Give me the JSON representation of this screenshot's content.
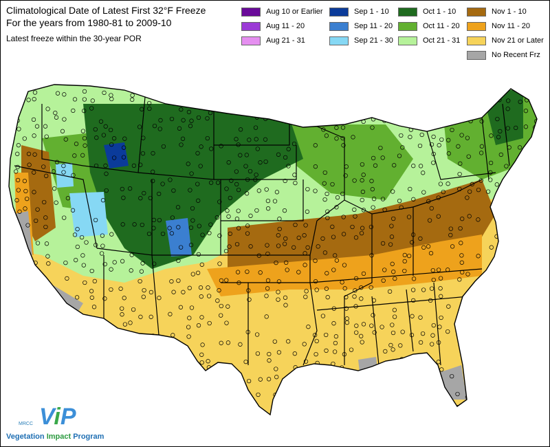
{
  "title_line1": "Climatological Date of Latest First 32°F Freeze",
  "title_line2": "For the years from 1980-81 to 2009-10",
  "subtitle": "Latest freeze within the 30-year POR",
  "legend": [
    {
      "label": "Aug 10 or Earlier",
      "color": "#6a0a9a"
    },
    {
      "label": "Aug 11 - 20",
      "color": "#9b3ad6"
    },
    {
      "label": "Aug 21 - 31",
      "color": "#e58ff0"
    },
    {
      "label": "Sep 1 - 10",
      "color": "#0b3b9a"
    },
    {
      "label": "Sep 11 - 20",
      "color": "#3b7fd0"
    },
    {
      "label": "Sep 21 - 30",
      "color": "#86d8f4"
    },
    {
      "label": "Oct 1 - 10",
      "color": "#1f6b1f"
    },
    {
      "label": "Oct 11 - 20",
      "color": "#62b030"
    },
    {
      "label": "Oct 21 - 31",
      "color": "#b6f29a"
    },
    {
      "label": "Nov 1 - 10",
      "color": "#a56a10"
    },
    {
      "label": "Nov 11 - 20",
      "color": "#eea21c"
    },
    {
      "label": "Nov 21 or Later",
      "color": "#f6d35a"
    },
    {
      "label": "No Recent Frz",
      "color": "#a6a6a6"
    }
  ],
  "logo": {
    "small": "MRCC",
    "vip_v": "V",
    "vip_i": "i",
    "vip_p": "P",
    "name_word1": "Vegetation",
    "name_word2": "Impact",
    "name_word3": "Program"
  }
}
